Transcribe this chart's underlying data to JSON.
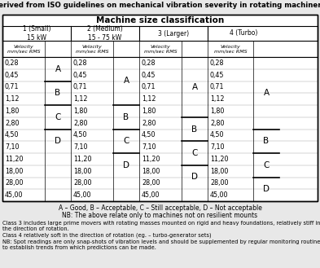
{
  "title": "Derived from ISO guidelines on mechanical vibration severity in rotating machinery",
  "table_title": "Machine size classification",
  "velocity_header": "Velocity\nmm/sec RMS",
  "velocities": [
    "0,28",
    "0,45",
    "0,71",
    "1,12",
    "1,80",
    "2,80",
    "4,50",
    "7,10",
    "11,20",
    "18,00",
    "28,00",
    "45,00"
  ],
  "class_labels": [
    "1 (Small)\n15 kW",
    "2 (Medium)\n15 - 75 kW",
    "3 (Larger)",
    "4 (Turbo)"
  ],
  "grade_labels": [
    "A",
    "B",
    "C",
    "D"
  ],
  "boundaries": {
    "0": [
      2,
      4,
      6,
      8
    ],
    "1": [
      4,
      6,
      8,
      10
    ],
    "2": [
      5,
      7,
      9,
      11
    ],
    "3": [
      6,
      8,
      10,
      12
    ]
  },
  "footer1": "A – Good, B – Acceptable, C – Still acceptable, D – Not acceptable",
  "footer2": "NB: The above relate only to machines not on resilient mounts",
  "footer3": "Class 3 includes large prime movers with rotating masses mounted on rigid and heavy foundations, relatively stiff in\nthe direction of rotation.\nClass 4 relatively soft in the direction of rotation (eg. – turbo-generator sets)",
  "footer4": "NB: Spot readings are only snap-shots of vibration levels and should be supplemented by regular monitoring routines\nto establish trends from which predictions can be made.",
  "bg_color": "#e8e8e8",
  "table_bg": "#ffffff"
}
